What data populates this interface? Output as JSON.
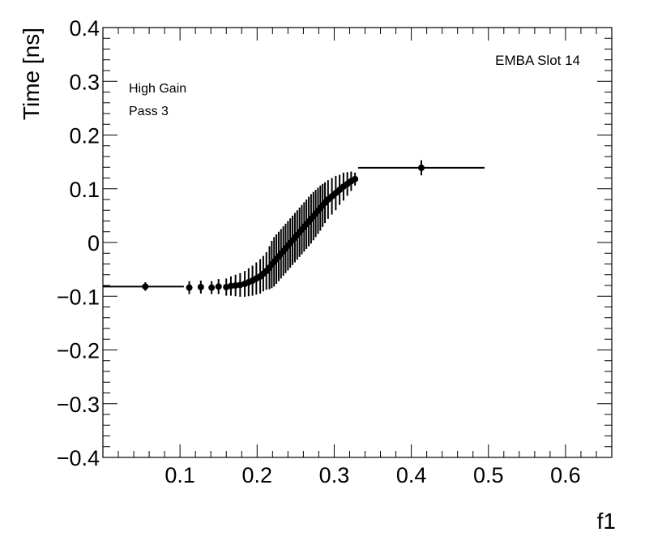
{
  "chart_data": {
    "type": "scatter",
    "style": "profile-histogram-with-error-bars",
    "ylabel": "Time [ns]",
    "xlabel": "f1",
    "title": "",
    "annotations": {
      "slot": "EMBA Slot 14",
      "gain": "High Gain",
      "pass": "Pass 3"
    },
    "xlim": [
      0.0,
      0.66
    ],
    "ylim": [
      -0.4,
      0.4
    ],
    "x_ticks": [
      0.1,
      0.2,
      0.3,
      0.4,
      0.5,
      0.6
    ],
    "x_tick_labels": [
      "0.1",
      "0.2",
      "0.3",
      "0.4",
      "0.5",
      "0.6"
    ],
    "y_ticks": [
      -0.4,
      -0.3,
      -0.2,
      -0.1,
      0,
      0.1,
      0.2,
      0.3,
      0.4
    ],
    "y_tick_labels": [
      "−0.4",
      "−0.3",
      "−0.2",
      "−0.1",
      "0",
      "0.1",
      "0.2",
      "0.3",
      "0.4"
    ],
    "grid": false,
    "color": "#000000",
    "first_bin": {
      "x_low": 0.0,
      "x_high": 0.105,
      "x": 0.055,
      "y": -0.082,
      "err": 0.008
    },
    "last_bin": {
      "x_low": 0.331,
      "x_high": 0.495,
      "x": 0.413,
      "y": 0.139,
      "err": 0.014
    },
    "points": [
      {
        "x": 0.112,
        "y": -0.084,
        "err": 0.012
      },
      {
        "x": 0.127,
        "y": -0.083,
        "err": 0.012
      },
      {
        "x": 0.141,
        "y": -0.084,
        "err": 0.012
      },
      {
        "x": 0.15,
        "y": -0.082,
        "err": 0.014
      },
      {
        "x": 0.16,
        "y": -0.083,
        "err": 0.016
      },
      {
        "x": 0.166,
        "y": -0.081,
        "err": 0.018
      },
      {
        "x": 0.172,
        "y": -0.08,
        "err": 0.02
      },
      {
        "x": 0.178,
        "y": -0.079,
        "err": 0.022
      },
      {
        "x": 0.184,
        "y": -0.077,
        "err": 0.024
      },
      {
        "x": 0.189,
        "y": -0.074,
        "err": 0.026
      },
      {
        "x": 0.194,
        "y": -0.071,
        "err": 0.028
      },
      {
        "x": 0.199,
        "y": -0.067,
        "err": 0.03
      },
      {
        "x": 0.204,
        "y": -0.063,
        "err": 0.032
      },
      {
        "x": 0.208,
        "y": -0.058,
        "err": 0.033
      },
      {
        "x": 0.212,
        "y": -0.053,
        "err": 0.035
      },
      {
        "x": 0.216,
        "y": -0.047,
        "err": 0.04
      },
      {
        "x": 0.219,
        "y": -0.041,
        "err": 0.044
      },
      {
        "x": 0.222,
        "y": -0.036,
        "err": 0.046
      },
      {
        "x": 0.225,
        "y": -0.031,
        "err": 0.046
      },
      {
        "x": 0.228,
        "y": -0.026,
        "err": 0.046
      },
      {
        "x": 0.231,
        "y": -0.021,
        "err": 0.046
      },
      {
        "x": 0.234,
        "y": -0.016,
        "err": 0.046
      },
      {
        "x": 0.237,
        "y": -0.011,
        "err": 0.046
      },
      {
        "x": 0.24,
        "y": -0.006,
        "err": 0.046
      },
      {
        "x": 0.243,
        "y": -0.001,
        "err": 0.046
      },
      {
        "x": 0.246,
        "y": 0.004,
        "err": 0.046
      },
      {
        "x": 0.249,
        "y": 0.009,
        "err": 0.046
      },
      {
        "x": 0.252,
        "y": 0.014,
        "err": 0.046
      },
      {
        "x": 0.255,
        "y": 0.019,
        "err": 0.046
      },
      {
        "x": 0.258,
        "y": 0.024,
        "err": 0.046
      },
      {
        "x": 0.261,
        "y": 0.029,
        "err": 0.046
      },
      {
        "x": 0.264,
        "y": 0.034,
        "err": 0.046
      },
      {
        "x": 0.267,
        "y": 0.039,
        "err": 0.046
      },
      {
        "x": 0.27,
        "y": 0.044,
        "err": 0.046
      },
      {
        "x": 0.273,
        "y": 0.049,
        "err": 0.045
      },
      {
        "x": 0.276,
        "y": 0.054,
        "err": 0.044
      },
      {
        "x": 0.279,
        "y": 0.059,
        "err": 0.043
      },
      {
        "x": 0.282,
        "y": 0.064,
        "err": 0.042
      },
      {
        "x": 0.285,
        "y": 0.069,
        "err": 0.04
      },
      {
        "x": 0.288,
        "y": 0.074,
        "err": 0.038
      },
      {
        "x": 0.292,
        "y": 0.08,
        "err": 0.036
      },
      {
        "x": 0.297,
        "y": 0.086,
        "err": 0.034
      },
      {
        "x": 0.302,
        "y": 0.092,
        "err": 0.032
      },
      {
        "x": 0.307,
        "y": 0.098,
        "err": 0.028
      },
      {
        "x": 0.312,
        "y": 0.104,
        "err": 0.026
      },
      {
        "x": 0.317,
        "y": 0.109,
        "err": 0.022
      },
      {
        "x": 0.322,
        "y": 0.114,
        "err": 0.018
      },
      {
        "x": 0.327,
        "y": 0.118,
        "err": 0.012
      }
    ]
  }
}
